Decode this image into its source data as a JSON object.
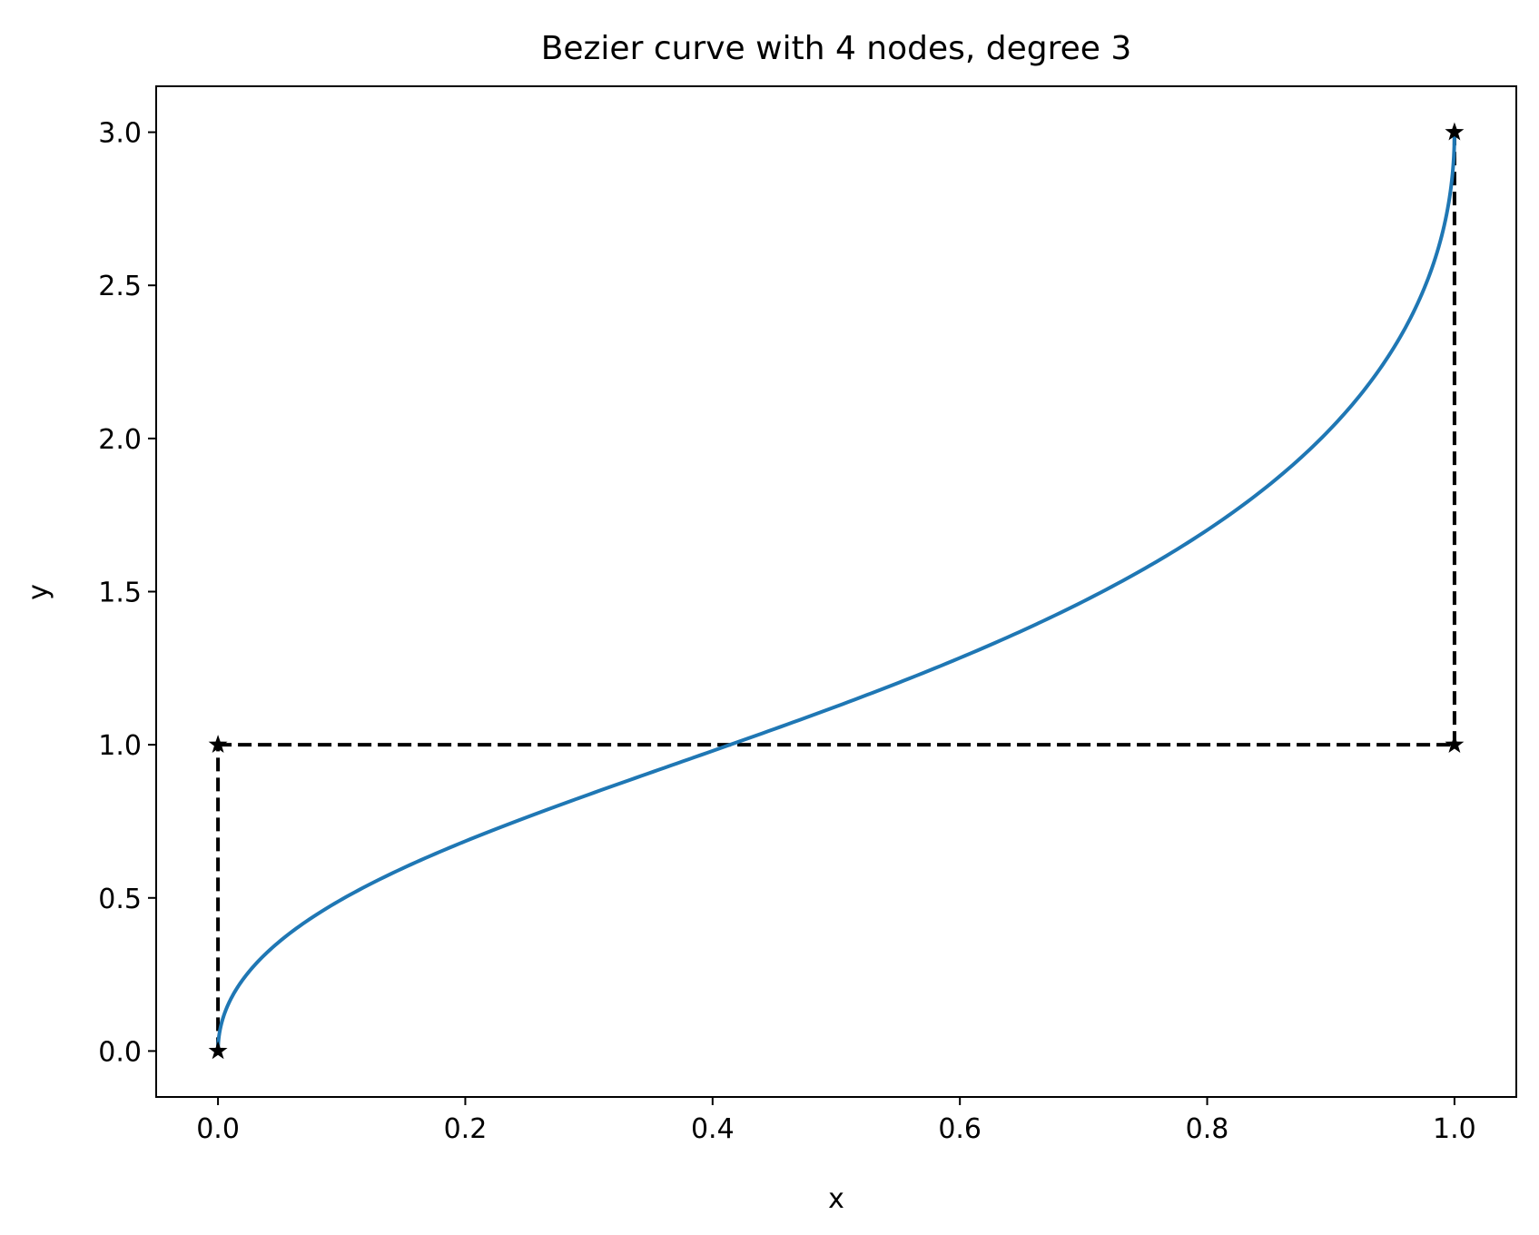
{
  "chart_data": {
    "type": "line",
    "title": "Bezier curve with 4 nodes, degree 3",
    "xlabel": "x",
    "ylabel": "y",
    "xlim": [
      -0.05,
      1.05
    ],
    "ylim": [
      -0.15,
      3.15
    ],
    "xticks": [
      0.0,
      0.2,
      0.4,
      0.6,
      0.8,
      1.0
    ],
    "xtick_labels": [
      "0.0",
      "0.2",
      "0.4",
      "0.6",
      "0.8",
      "1.0"
    ],
    "yticks": [
      0.0,
      0.5,
      1.0,
      1.5,
      2.0,
      2.5,
      3.0
    ],
    "ytick_labels": [
      "0.0",
      "0.5",
      "1.0",
      "1.5",
      "2.0",
      "2.5",
      "3.0"
    ],
    "grid": false,
    "legend": "none",
    "control_points": [
      {
        "x": 0.0,
        "y": 0.0
      },
      {
        "x": 0.0,
        "y": 1.0
      },
      {
        "x": 1.0,
        "y": 1.0
      },
      {
        "x": 1.0,
        "y": 3.0
      }
    ],
    "control_polygon_style": "dashed",
    "control_point_marker": "star",
    "curve_degree": 3,
    "colors": {
      "curve": "#1f77b4",
      "control": "#000000",
      "axes": "#000000"
    }
  }
}
